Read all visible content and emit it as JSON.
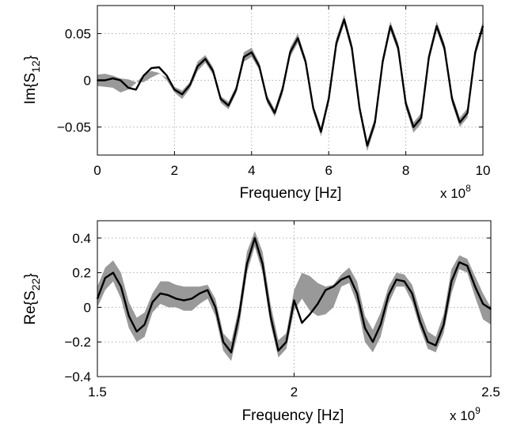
{
  "chart_data": [
    {
      "type": "line",
      "xlabel": "Frequency [Hz]",
      "ylabel_main": "Im{S",
      "ylabel_sub": "12",
      "ylabel_tail": "}",
      "x_exponent_base": "x 10",
      "x_exponent": "8",
      "xlim": [
        0,
        10
      ],
      "ylim": [
        -0.08,
        0.08
      ],
      "xticks": [
        0,
        2,
        4,
        6,
        8,
        10
      ],
      "xtick_labels": [
        "0",
        "2",
        "4",
        "6",
        "8",
        "10"
      ],
      "yticks": [
        0.05,
        0,
        -0.05
      ],
      "ytick_labels": [
        "0.05",
        "0",
        "−0.05"
      ],
      "grid": true,
      "line_color": "#000000",
      "band_color": "#999999",
      "x": [
        0,
        0.2,
        0.4,
        0.6,
        0.8,
        1.0,
        1.2,
        1.4,
        1.6,
        1.8,
        2.0,
        2.2,
        2.4,
        2.6,
        2.8,
        3.0,
        3.2,
        3.4,
        3.6,
        3.8,
        4.0,
        4.2,
        4.4,
        4.6,
        4.8,
        5.0,
        5.2,
        5.4,
        5.6,
        5.8,
        6.0,
        6.2,
        6.4,
        6.6,
        6.8,
        7.0,
        7.2,
        7.4,
        7.6,
        7.8,
        8.0,
        8.2,
        8.4,
        8.6,
        8.8,
        9.0,
        9.2,
        9.4,
        9.6,
        9.8,
        10.0
      ],
      "series": [
        {
          "values": [
            0,
            0,
            0.002,
            0,
            -0.008,
            -0.01,
            0.005,
            0.013,
            0.014,
            0.005,
            -0.01,
            -0.015,
            -0.005,
            0.015,
            0.023,
            0.01,
            -0.02,
            -0.027,
            -0.01,
            0.025,
            0.03,
            0.015,
            -0.02,
            -0.035,
            -0.01,
            0.03,
            0.045,
            0.02,
            -0.03,
            -0.055,
            -0.02,
            0.04,
            0.065,
            0.035,
            -0.03,
            -0.07,
            -0.045,
            0.02,
            0.058,
            0.035,
            -0.025,
            -0.05,
            -0.04,
            0.025,
            0.058,
            0.035,
            -0.02,
            -0.045,
            -0.035,
            0.03,
            0.058
          ]
        },
        {
          "values": [
            0.006,
            0.007,
            0.005,
            0.002,
            0.001,
            -0.002,
            -0.002,
            0.003,
            0.007,
            0.003,
            -0.007,
            -0.011,
            -0.002,
            0.02,
            0.027,
            0.014,
            -0.017,
            -0.023,
            -0.006,
            0.03,
            0.035,
            0.019,
            -0.016,
            -0.031,
            -0.005,
            0.035,
            0.05,
            0.024,
            -0.026,
            -0.05,
            -0.015,
            0.045,
            0.07,
            0.04,
            -0.025,
            -0.065,
            -0.04,
            0.025,
            0.063,
            0.04,
            -0.02,
            -0.045,
            -0.035,
            0.03,
            0.063,
            0.04,
            -0.015,
            -0.04,
            -0.03,
            0.035,
            0.063
          ]
        },
        {
          "values": [
            -0.006,
            -0.007,
            -0.008,
            -0.013,
            -0.01,
            -0.003,
            0.006,
            0.01,
            0.008,
            0.0,
            -0.013,
            -0.02,
            -0.009,
            0.01,
            0.019,
            0.006,
            -0.024,
            -0.031,
            -0.014,
            0.02,
            0.025,
            0.011,
            -0.024,
            -0.039,
            -0.015,
            0.025,
            0.04,
            0.016,
            -0.034,
            -0.06,
            -0.025,
            0.035,
            0.06,
            0.03,
            -0.035,
            -0.076,
            -0.05,
            0.015,
            0.053,
            0.03,
            -0.03,
            -0.056,
            -0.046,
            0.02,
            0.053,
            0.03,
            -0.025,
            -0.05,
            -0.04,
            0.025,
            0.053
          ]
        }
      ]
    },
    {
      "type": "line",
      "xlabel": "Frequency [Hz]",
      "ylabel_main": "Re{S",
      "ylabel_sub": "22",
      "ylabel_tail": "}",
      "x_exponent_base": "x 10",
      "x_exponent": "9",
      "xlim": [
        1.5,
        2.5
      ],
      "ylim": [
        -0.4,
        0.5
      ],
      "xticks": [
        1.5,
        2,
        2.5
      ],
      "xtick_labels": [
        "1.5",
        "2",
        "2.5"
      ],
      "yticks": [
        0.4,
        0.2,
        0,
        -0.2,
        -0.4
      ],
      "ytick_labels": [
        "0.4",
        "0.2",
        "0",
        "−0.2",
        "−0.4"
      ],
      "grid": true,
      "line_color": "#000000",
      "band_color": "#999999",
      "x": [
        1.5,
        1.52,
        1.54,
        1.56,
        1.58,
        1.6,
        1.62,
        1.64,
        1.66,
        1.68,
        1.7,
        1.72,
        1.74,
        1.76,
        1.78,
        1.8,
        1.82,
        1.84,
        1.86,
        1.88,
        1.9,
        1.92,
        1.94,
        1.96,
        1.98,
        2.0,
        2.02,
        2.04,
        2.06,
        2.08,
        2.1,
        2.12,
        2.14,
        2.16,
        2.18,
        2.2,
        2.22,
        2.24,
        2.26,
        2.28,
        2.3,
        2.32,
        2.34,
        2.36,
        2.38,
        2.4,
        2.42,
        2.44,
        2.46,
        2.48,
        2.5
      ],
      "series": [
        {
          "values": [
            0.05,
            0.17,
            0.2,
            0.12,
            -0.05,
            -0.14,
            -0.1,
            0.03,
            0.08,
            0.07,
            0.05,
            0.04,
            0.05,
            0.08,
            0.1,
            0.0,
            -0.2,
            -0.26,
            -0.05,
            0.25,
            0.4,
            0.25,
            -0.05,
            -0.25,
            -0.2,
            0.04,
            -0.09,
            -0.04,
            0.02,
            0.1,
            0.12,
            0.16,
            0.18,
            0.08,
            -0.12,
            -0.2,
            -0.1,
            0.07,
            0.16,
            0.15,
            0.08,
            -0.08,
            -0.2,
            -0.22,
            -0.1,
            0.15,
            0.26,
            0.24,
            0.12,
            0.02,
            -0.01
          ]
        },
        {
          "values": [
            0.12,
            0.23,
            0.27,
            0.2,
            0.03,
            -0.06,
            -0.03,
            0.08,
            0.15,
            0.15,
            0.13,
            0.12,
            0.12,
            0.12,
            0.13,
            0.05,
            -0.15,
            -0.2,
            0.0,
            0.32,
            0.44,
            0.32,
            0.02,
            -0.19,
            -0.15,
            0.1,
            0.2,
            0.18,
            0.14,
            0.12,
            0.13,
            0.19,
            0.23,
            0.15,
            -0.05,
            -0.13,
            -0.03,
            0.12,
            0.2,
            0.19,
            0.13,
            -0.02,
            -0.14,
            -0.17,
            -0.04,
            0.22,
            0.3,
            0.28,
            0.18,
            0.08,
            0.0
          ]
        },
        {
          "values": [
            0.0,
            0.1,
            0.15,
            0.05,
            -0.12,
            -0.2,
            -0.17,
            -0.03,
            0.02,
            0.0,
            0.0,
            -0.02,
            -0.02,
            0.02,
            0.05,
            -0.05,
            -0.25,
            -0.31,
            -0.12,
            0.2,
            0.35,
            0.2,
            -0.1,
            -0.29,
            -0.24,
            -0.02,
            0.05,
            -0.02,
            -0.05,
            -0.04,
            0.0,
            0.12,
            0.14,
            0.02,
            -0.2,
            -0.26,
            -0.17,
            0.02,
            0.12,
            0.12,
            0.03,
            -0.12,
            -0.24,
            -0.26,
            -0.15,
            0.08,
            0.22,
            0.2,
            0.06,
            -0.07,
            -0.1
          ]
        }
      ]
    }
  ]
}
